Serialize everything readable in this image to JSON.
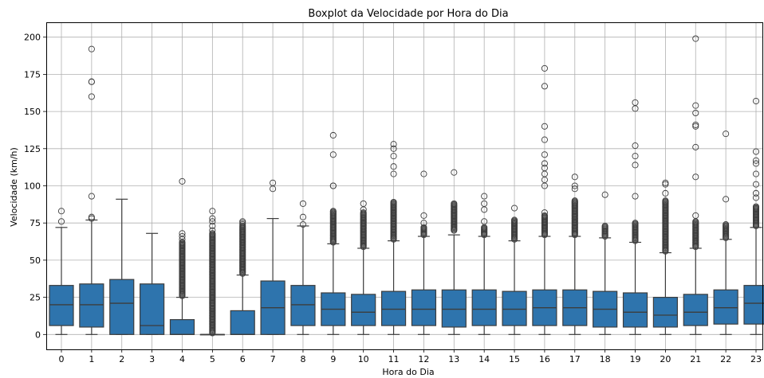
{
  "chart_data": {
    "type": "box",
    "title": "Boxplot da Velocidade por Hora do Dia",
    "xlabel": "Hora do Dia",
    "ylabel": "Velocidade (km/h)",
    "ylim": [
      -10,
      210
    ],
    "yticks": [
      0,
      25,
      50,
      75,
      100,
      125,
      150,
      175,
      200
    ],
    "grid": true,
    "box_color": "#2e74ad",
    "line_color": "#3d3d3d",
    "categories": [
      "0",
      "1",
      "2",
      "3",
      "4",
      "5",
      "6",
      "7",
      "8",
      "9",
      "10",
      "11",
      "12",
      "13",
      "14",
      "15",
      "16",
      "17",
      "18",
      "19",
      "20",
      "21",
      "22",
      "23"
    ],
    "boxes": [
      {
        "whislo": 0,
        "q1": 6,
        "med": 20,
        "q3": 33,
        "whishi": 72,
        "fliers": [
          76,
          83
        ]
      },
      {
        "whislo": 0,
        "q1": 5,
        "med": 20,
        "q3": 34,
        "whishi": 77,
        "fliers": [
          78,
          79,
          93,
          160,
          170,
          170,
          192
        ]
      },
      {
        "whislo": 0,
        "q1": 0,
        "med": 21,
        "q3": 37,
        "whishi": 91,
        "fliers": []
      },
      {
        "whislo": 0,
        "q1": 0,
        "med": 6,
        "q3": 34,
        "whishi": 68,
        "fliers": []
      },
      {
        "whislo": 0,
        "q1": 0,
        "med": 0,
        "q3": 10,
        "whishi": 25,
        "fliers": [
          103,
          68,
          66,
          64
        ],
        "flier_range": [
          26,
          62
        ]
      },
      {
        "whislo": 0,
        "q1": 0,
        "med": 0,
        "q3": 0,
        "whishi": 0,
        "fliers": [
          83,
          78,
          76,
          73,
          70
        ],
        "flier_range": [
          1,
          68
        ]
      },
      {
        "whislo": 0,
        "q1": 0,
        "med": 0,
        "q3": 16,
        "whishi": 40,
        "fliers": [
          76,
          75,
          74
        ],
        "flier_range": [
          41,
          73
        ]
      },
      {
        "whislo": 0,
        "q1": 0,
        "med": 18,
        "q3": 36,
        "whishi": 78,
        "fliers": [
          98,
          102
        ]
      },
      {
        "whislo": 0,
        "q1": 6,
        "med": 20,
        "q3": 33,
        "whishi": 73,
        "fliers": [
          74,
          79,
          88
        ]
      },
      {
        "whislo": 0,
        "q1": 6,
        "med": 17,
        "q3": 28,
        "whishi": 61,
        "fliers": [
          100,
          100,
          121,
          134
        ],
        "flier_range": [
          62,
          83
        ]
      },
      {
        "whislo": 0,
        "q1": 6,
        "med": 15,
        "q3": 27,
        "whishi": 58,
        "fliers": [
          84,
          88
        ],
        "flier_range": [
          59,
          82
        ]
      },
      {
        "whislo": 0,
        "q1": 6,
        "med": 17,
        "q3": 29,
        "whishi": 63,
        "fliers": [
          108,
          113,
          120,
          125,
          128
        ],
        "flier_range": [
          64,
          89
        ]
      },
      {
        "whislo": 0,
        "q1": 6,
        "med": 17,
        "q3": 30,
        "whishi": 66,
        "fliers": [
          75,
          80,
          108
        ],
        "flier_range": [
          67,
          72
        ]
      },
      {
        "whislo": 0,
        "q1": 5,
        "med": 17,
        "q3": 30,
        "whishi": 67,
        "fliers": [
          109
        ],
        "flier_range": [
          70,
          88
        ]
      },
      {
        "whislo": 0,
        "q1": 6,
        "med": 17,
        "q3": 30,
        "whishi": 66,
        "fliers": [
          76,
          84,
          88,
          93
        ],
        "flier_range": [
          67,
          72
        ]
      },
      {
        "whislo": 0,
        "q1": 6,
        "med": 17,
        "q3": 29,
        "whishi": 63,
        "fliers": [
          85
        ],
        "flier_range": [
          64,
          77
        ]
      },
      {
        "whislo": 0,
        "q1": 6,
        "med": 18,
        "q3": 30,
        "whishi": 66,
        "fliers": [
          82,
          100,
          104,
          108,
          112,
          115,
          121,
          131,
          140,
          167,
          179
        ],
        "flier_range": [
          67,
          80
        ]
      },
      {
        "whislo": 0,
        "q1": 6,
        "med": 18,
        "q3": 30,
        "whishi": 66,
        "fliers": [
          98,
          100,
          106
        ],
        "flier_range": [
          67,
          90
        ]
      },
      {
        "whislo": 0,
        "q1": 5,
        "med": 17,
        "q3": 29,
        "whishi": 65,
        "fliers": [
          94
        ],
        "flier_range": [
          66,
          73
        ]
      },
      {
        "whislo": 0,
        "q1": 5,
        "med": 15,
        "q3": 28,
        "whishi": 62,
        "fliers": [
          93,
          114,
          120,
          127,
          152,
          156
        ],
        "flier_range": [
          63,
          75
        ]
      },
      {
        "whislo": 0,
        "q1": 5,
        "med": 13,
        "q3": 25,
        "whishi": 55,
        "fliers": [
          95,
          101,
          102
        ],
        "flier_range": [
          56,
          90
        ]
      },
      {
        "whislo": 0,
        "q1": 6,
        "med": 15,
        "q3": 27,
        "whishi": 58,
        "fliers": [
          80,
          106,
          126,
          140,
          141,
          149,
          154,
          199
        ],
        "flier_range": [
          59,
          76
        ]
      },
      {
        "whislo": 0,
        "q1": 7,
        "med": 18,
        "q3": 30,
        "whishi": 64,
        "fliers": [
          91,
          135
        ],
        "flier_range": [
          65,
          74
        ]
      },
      {
        "whislo": 0,
        "q1": 7,
        "med": 21,
        "q3": 33,
        "whishi": 72,
        "fliers": [
          92,
          95,
          101,
          108,
          115,
          117,
          123,
          157
        ],
        "flier_range": [
          73,
          86
        ]
      }
    ]
  }
}
